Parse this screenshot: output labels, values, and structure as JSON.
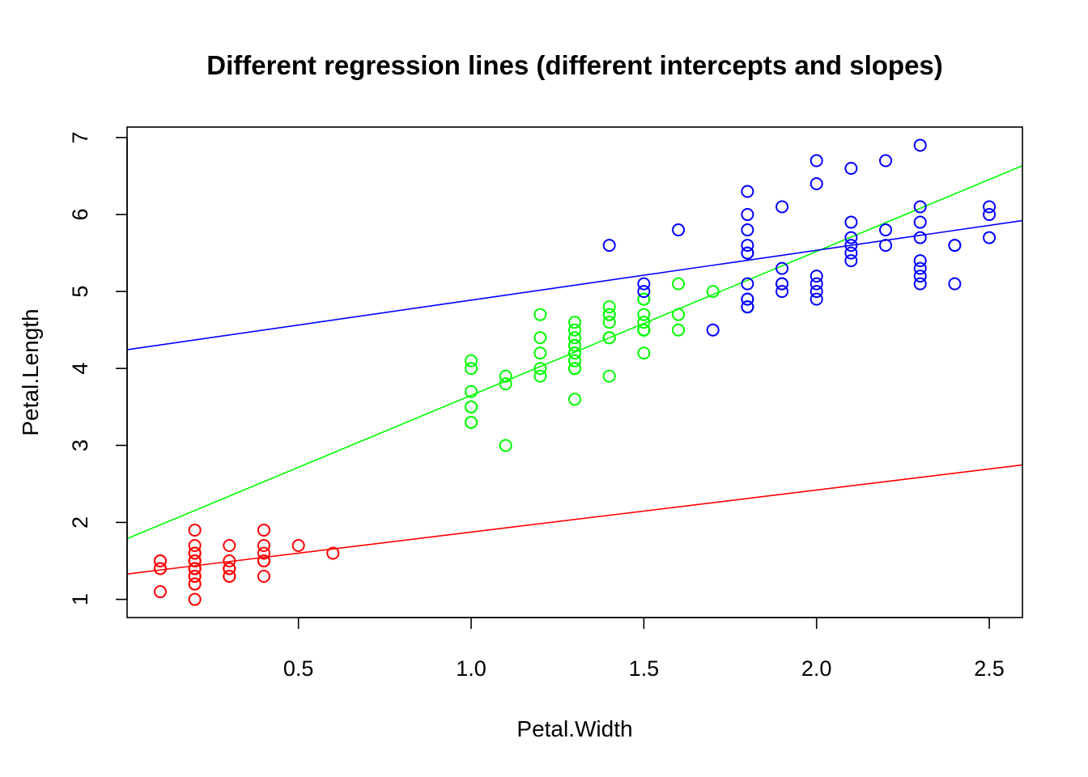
{
  "chart_data": {
    "type": "scatter",
    "title": "Different regression lines (different intercepts and slopes)",
    "xlabel": "Petal.Width",
    "ylabel": "Petal.Length",
    "xlim": [
      0.1,
      2.5
    ],
    "ylim": [
      1.0,
      6.9
    ],
    "x_ticks": [
      0.5,
      1.0,
      1.5,
      2.0,
      2.5
    ],
    "x_tick_labels": [
      "0.5",
      "1.0",
      "1.5",
      "2.0",
      "2.5"
    ],
    "y_ticks": [
      1,
      2,
      3,
      4,
      5,
      6,
      7
    ],
    "y_tick_labels": [
      "1",
      "2",
      "3",
      "4",
      "5",
      "6",
      "7"
    ],
    "grid": false,
    "legend": "none",
    "series": [
      {
        "color": "#ff0000",
        "points": [
          [
            0.2,
            1.4
          ],
          [
            0.2,
            1.4
          ],
          [
            0.2,
            1.3
          ],
          [
            0.2,
            1.5
          ],
          [
            0.2,
            1.4
          ],
          [
            0.4,
            1.7
          ],
          [
            0.3,
            1.4
          ],
          [
            0.2,
            1.5
          ],
          [
            0.2,
            1.4
          ],
          [
            0.1,
            1.5
          ],
          [
            0.2,
            1.5
          ],
          [
            0.2,
            1.6
          ],
          [
            0.1,
            1.4
          ],
          [
            0.1,
            1.1
          ],
          [
            0.2,
            1.2
          ],
          [
            0.4,
            1.5
          ],
          [
            0.4,
            1.3
          ],
          [
            0.3,
            1.4
          ],
          [
            0.3,
            1.7
          ],
          [
            0.3,
            1.5
          ],
          [
            0.2,
            1.7
          ],
          [
            0.4,
            1.5
          ],
          [
            0.2,
            1.0
          ],
          [
            0.5,
            1.7
          ],
          [
            0.2,
            1.9
          ],
          [
            0.2,
            1.6
          ],
          [
            0.4,
            1.6
          ],
          [
            0.2,
            1.5
          ],
          [
            0.2,
            1.4
          ],
          [
            0.2,
            1.6
          ],
          [
            0.2,
            1.6
          ],
          [
            0.4,
            1.5
          ],
          [
            0.1,
            1.5
          ],
          [
            0.2,
            1.4
          ],
          [
            0.2,
            1.5
          ],
          [
            0.2,
            1.2
          ],
          [
            0.2,
            1.3
          ],
          [
            0.1,
            1.4
          ],
          [
            0.2,
            1.3
          ],
          [
            0.2,
            1.5
          ],
          [
            0.3,
            1.3
          ],
          [
            0.3,
            1.3
          ],
          [
            0.2,
            1.3
          ],
          [
            0.6,
            1.6
          ],
          [
            0.4,
            1.9
          ],
          [
            0.3,
            1.4
          ],
          [
            0.2,
            1.6
          ],
          [
            0.2,
            1.4
          ],
          [
            0.2,
            1.5
          ],
          [
            0.2,
            1.4
          ]
        ],
        "regression": {
          "intercept": 1.3276,
          "slope": 0.5465
        }
      },
      {
        "color": "#00ff00",
        "points": [
          [
            1.4,
            4.7
          ],
          [
            1.5,
            4.5
          ],
          [
            1.5,
            4.9
          ],
          [
            1.3,
            4.0
          ],
          [
            1.5,
            4.6
          ],
          [
            1.3,
            4.5
          ],
          [
            1.6,
            4.7
          ],
          [
            1.0,
            3.3
          ],
          [
            1.3,
            4.6
          ],
          [
            1.4,
            3.9
          ],
          [
            1.0,
            3.5
          ],
          [
            1.5,
            4.2
          ],
          [
            1.0,
            4.0
          ],
          [
            1.4,
            4.7
          ],
          [
            1.3,
            3.6
          ],
          [
            1.4,
            4.4
          ],
          [
            1.5,
            4.5
          ],
          [
            1.0,
            4.1
          ],
          [
            1.5,
            4.5
          ],
          [
            1.1,
            3.9
          ],
          [
            1.8,
            4.8
          ],
          [
            1.3,
            4.0
          ],
          [
            1.5,
            4.9
          ],
          [
            1.2,
            4.7
          ],
          [
            1.3,
            4.3
          ],
          [
            1.4,
            4.4
          ],
          [
            1.4,
            4.8
          ],
          [
            1.7,
            5.0
          ],
          [
            1.5,
            4.5
          ],
          [
            1.0,
            3.5
          ],
          [
            1.1,
            3.8
          ],
          [
            1.0,
            3.7
          ],
          [
            1.2,
            3.9
          ],
          [
            1.6,
            5.1
          ],
          [
            1.5,
            4.5
          ],
          [
            1.6,
            4.5
          ],
          [
            1.5,
            4.7
          ],
          [
            1.3,
            4.4
          ],
          [
            1.3,
            4.1
          ],
          [
            1.3,
            4.0
          ],
          [
            1.2,
            4.4
          ],
          [
            1.4,
            4.6
          ],
          [
            1.2,
            4.0
          ],
          [
            1.0,
            3.3
          ],
          [
            1.3,
            4.2
          ],
          [
            1.2,
            4.2
          ],
          [
            1.3,
            4.2
          ],
          [
            1.3,
            4.3
          ],
          [
            1.1,
            3.0
          ],
          [
            1.3,
            4.1
          ]
        ],
        "regression": {
          "intercept": 1.7813,
          "slope": 1.8693
        }
      },
      {
        "color": "#0000ff",
        "points": [
          [
            2.5,
            6.0
          ],
          [
            1.9,
            5.1
          ],
          [
            2.1,
            5.9
          ],
          [
            1.8,
            5.6
          ],
          [
            2.2,
            5.8
          ],
          [
            2.1,
            6.6
          ],
          [
            1.7,
            4.5
          ],
          [
            1.8,
            6.3
          ],
          [
            1.8,
            5.8
          ],
          [
            2.5,
            6.1
          ],
          [
            2.0,
            5.1
          ],
          [
            1.9,
            5.3
          ],
          [
            2.1,
            5.5
          ],
          [
            2.0,
            5.0
          ],
          [
            2.4,
            5.1
          ],
          [
            2.3,
            5.3
          ],
          [
            1.8,
            5.5
          ],
          [
            2.2,
            6.7
          ],
          [
            2.3,
            6.9
          ],
          [
            1.5,
            5.0
          ],
          [
            2.3,
            5.7
          ],
          [
            2.0,
            4.9
          ],
          [
            2.0,
            6.7
          ],
          [
            1.8,
            4.9
          ],
          [
            2.1,
            5.7
          ],
          [
            1.8,
            6.0
          ],
          [
            1.8,
            4.8
          ],
          [
            1.8,
            4.9
          ],
          [
            2.1,
            5.6
          ],
          [
            1.6,
            5.8
          ],
          [
            1.9,
            6.1
          ],
          [
            2.0,
            6.4
          ],
          [
            2.2,
            5.6
          ],
          [
            1.5,
            5.1
          ],
          [
            1.4,
            5.6
          ],
          [
            2.3,
            6.1
          ],
          [
            2.4,
            5.6
          ],
          [
            1.8,
            5.5
          ],
          [
            1.8,
            4.8
          ],
          [
            2.1,
            5.4
          ],
          [
            2.4,
            5.6
          ],
          [
            2.3,
            5.1
          ],
          [
            1.9,
            5.1
          ],
          [
            2.3,
            5.9
          ],
          [
            2.5,
            5.7
          ],
          [
            2.3,
            5.2
          ],
          [
            1.9,
            5.0
          ],
          [
            2.0,
            5.2
          ],
          [
            2.3,
            5.4
          ],
          [
            1.8,
            5.1
          ]
        ],
        "regression": {
          "intercept": 4.2407,
          "slope": 0.6472
        }
      }
    ]
  }
}
